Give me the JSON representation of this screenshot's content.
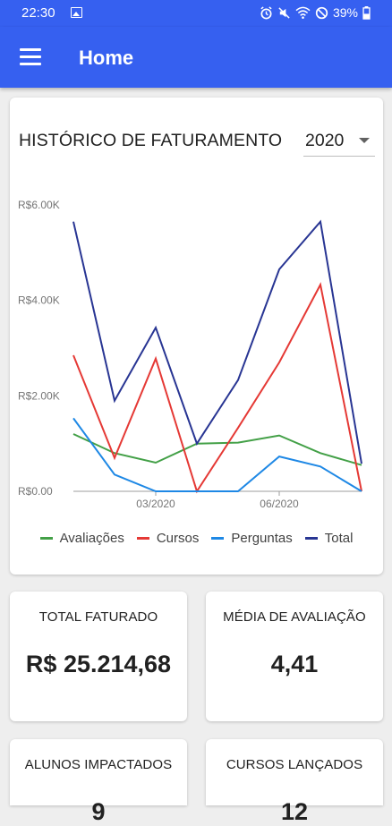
{
  "status_bar": {
    "time": "22:30",
    "battery": "39%",
    "icons": [
      "image-icon",
      "alarm-icon",
      "mute-icon",
      "wifi-icon",
      "do-not-disturb-icon",
      "battery-icon"
    ]
  },
  "app_bar": {
    "title": "Home",
    "menu_icon": "hamburger-menu-icon"
  },
  "chart_card": {
    "title": "HISTÓRICO DE FATURAMENTO",
    "year_selected": "2020"
  },
  "chart_data": {
    "type": "line",
    "title": "HISTÓRICO DE FATURAMENTO",
    "x": [
      "01/2020",
      "02/2020",
      "03/2020",
      "04/2020",
      "05/2020",
      "06/2020",
      "07/2020",
      "08/2020"
    ],
    "x_tick_labels": [
      "03/2020",
      "06/2020"
    ],
    "y_tick_labels": [
      "R$0.00",
      "R$2.00K",
      "R$4.00K",
      "R$6.00K"
    ],
    "ylim": [
      0,
      6000
    ],
    "grid": false,
    "legend_position": "bottom",
    "series": [
      {
        "name": "Avaliações",
        "color": "#43a047",
        "values": [
          1200,
          800,
          600,
          1000,
          1020,
          1170,
          800,
          550
        ]
      },
      {
        "name": "Cursos",
        "color": "#e53935",
        "values": [
          2850,
          700,
          2780,
          0,
          1330,
          2700,
          4330,
          0
        ]
      },
      {
        "name": "Perguntas",
        "color": "#1e88e5",
        "values": [
          1530,
          350,
          0,
          0,
          0,
          730,
          520,
          0
        ]
      },
      {
        "name": "Total",
        "color": "#283593",
        "values": [
          5650,
          1900,
          3430,
          1000,
          2330,
          4650,
          5650,
          580
        ]
      }
    ]
  },
  "stats": [
    {
      "label": "TOTAL FATURADO",
      "value": "R$ 25.214,68"
    },
    {
      "label": "MÉDIA DE AVALIAÇÃO",
      "value": "4,41"
    },
    {
      "label": "ALUNOS IMPACTADOS",
      "value": "9"
    },
    {
      "label": "CURSOS LANÇADOS",
      "value": "12"
    }
  ]
}
